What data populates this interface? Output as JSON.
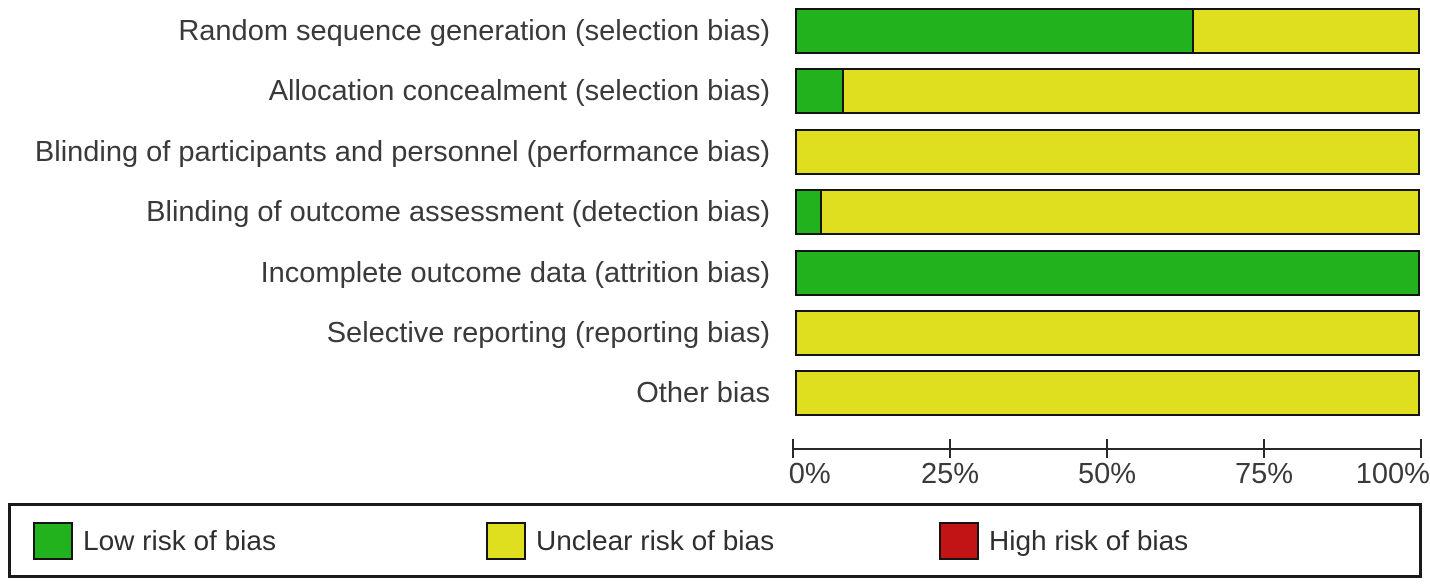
{
  "chart_data": {
    "type": "bar",
    "orientation": "horizontal-stacked",
    "title": "",
    "xlabel": "",
    "ylabel": "",
    "xlim": [
      0,
      100
    ],
    "x_ticks": [
      "0%",
      "25%",
      "50%",
      "75%",
      "100%"
    ],
    "grid": false,
    "legend_position": "bottom",
    "categories": [
      "Random sequence generation (selection bias)",
      "Allocation concealment (selection bias)",
      "Blinding of participants and personnel (performance bias)",
      "Blinding of outcome assessment (detection bias)",
      "Incomplete outcome data (attrition bias)",
      "Selective reporting (reporting bias)",
      "Other bias"
    ],
    "series": [
      {
        "name": "Low risk of bias",
        "color": "#21b21e",
        "values": [
          64,
          7.5,
          0,
          4,
          100,
          0,
          0
        ]
      },
      {
        "name": "Unclear risk of bias",
        "color": "#dfdf20",
        "values": [
          36,
          92.5,
          100,
          96,
          0,
          100,
          100
        ]
      },
      {
        "name": "High risk of bias",
        "color": "#c21414",
        "values": [
          0,
          0,
          0,
          0,
          0,
          0,
          0
        ]
      }
    ]
  },
  "legend": {
    "items": [
      {
        "label": "Low risk of bias",
        "color": "#21b21e"
      },
      {
        "label": "Unclear risk of bias",
        "color": "#dfdf20"
      },
      {
        "label": "High risk of bias",
        "color": "#c21414"
      }
    ]
  }
}
